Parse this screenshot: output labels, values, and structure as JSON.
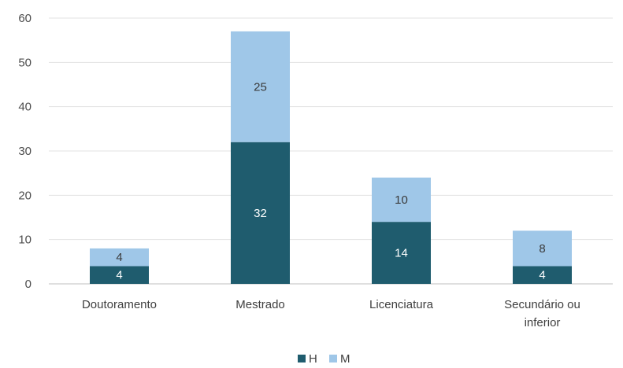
{
  "chart_data": {
    "type": "bar",
    "stacked": true,
    "title": "",
    "xlabel": "",
    "ylabel": "",
    "ylim": [
      0,
      60
    ],
    "yticks": [
      0,
      10,
      20,
      30,
      40,
      50,
      60
    ],
    "grid": true,
    "legend_position": "bottom-center",
    "categories": [
      [
        "Doutoramento"
      ],
      [
        "Mestrado"
      ],
      [
        "Licenciatura"
      ],
      [
        "Secundário ou",
        "inferior"
      ]
    ],
    "series": [
      {
        "name": "H",
        "color": "#1f5c6e",
        "label_color": "#ffffff",
        "values": [
          4,
          32,
          14,
          4
        ]
      },
      {
        "name": "M",
        "color": "#9fc7e8",
        "label_color": "#3a3a3a",
        "values": [
          4,
          25,
          10,
          8
        ]
      }
    ]
  }
}
